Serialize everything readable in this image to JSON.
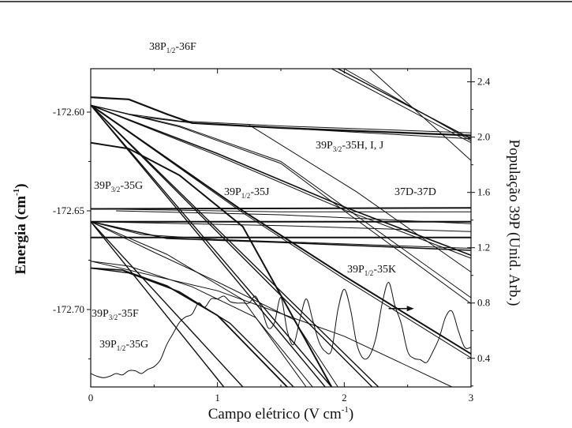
{
  "chart_data": {
    "type": "line",
    "xlabel": "Campo elétrico (V cm-1)",
    "xlabel_main": "Campo elétrico (V cm",
    "xlabel_sup": "-1",
    "xlabel_end": ")",
    "ylabel_main": "Energia  (cm",
    "ylabel_sup": "-1",
    "ylabel_end": ")",
    "y2label": "População 39P (Unid. Arb.)",
    "xlim": [
      0,
      3
    ],
    "ylim": [
      -172.7392,
      -172.578
    ],
    "y2lim": [
      0.193,
      2.495
    ],
    "xticks": [
      {
        "v": 0,
        "t": "0"
      },
      {
        "v": 1,
        "t": "1"
      },
      {
        "v": 2,
        "t": "2"
      },
      {
        "v": 3,
        "t": "3"
      }
    ],
    "yticks": [
      {
        "v": -172.6,
        "t": "-172.60"
      },
      {
        "v": -172.65,
        "t": "-172.65"
      },
      {
        "v": -172.7,
        "t": "-172.70"
      }
    ],
    "y2ticks": [
      {
        "v": 2.4,
        "t": "2.4"
      },
      {
        "v": 2.0,
        "t": "2.0"
      },
      {
        "v": 1.6,
        "t": "1.6"
      },
      {
        "v": 1.2,
        "t": "1.2"
      },
      {
        "v": 0.8,
        "t": "0.8"
      },
      {
        "v": 0.4,
        "t": "0.4"
      }
    ],
    "annotations": [
      {
        "main": "38P",
        "sub": "1/2",
        "rest": "-36F"
      },
      {
        "main": "39P",
        "sub": "3/2",
        "rest": "-35H, I, J"
      },
      {
        "main": "39P",
        "sub": "3/2",
        "rest": "-35G"
      },
      {
        "main": "39P",
        "sub": "1/2",
        "rest": "-35J"
      },
      {
        "main": "37D-37D",
        "sub": "",
        "rest": ""
      },
      {
        "main": "39P",
        "sub": "1/2",
        "rest": "-35K"
      },
      {
        "main": "39P",
        "sub": "3/2",
        "rest": "-35F"
      },
      {
        "main": "39P",
        "sub": "1/2",
        "rest": "-35G"
      }
    ],
    "energy_levels": [
      {
        "w": 2.2,
        "pts": [
          [
            0,
            -172.5925
          ],
          [
            0.3,
            -172.5935
          ],
          [
            0.6,
            -172.601
          ],
          [
            0.8,
            -172.6055
          ],
          [
            1.5,
            -172.608
          ],
          [
            3,
            -172.6118
          ]
        ]
      },
      {
        "w": 1,
        "pts": [
          [
            0,
            -172.5965
          ],
          [
            0.3,
            -172.601
          ],
          [
            0.7,
            -172.6045
          ],
          [
            1.5,
            -172.607
          ],
          [
            3,
            -172.6105
          ]
        ]
      },
      {
        "w": 1,
        "pts": [
          [
            0,
            -172.5965
          ],
          [
            0.4,
            -172.6025
          ],
          [
            0.8,
            -172.6055
          ],
          [
            3,
            -172.6135
          ]
        ]
      },
      {
        "w": 2,
        "pts": [
          [
            0,
            -172.5965
          ],
          [
            1.2,
            -172.65
          ],
          [
            2,
            -172.683
          ],
          [
            3,
            -172.7225
          ]
        ]
      },
      {
        "w": 1,
        "pts": [
          [
            0,
            -172.5965
          ],
          [
            1.2,
            -172.651
          ],
          [
            2,
            -172.6845
          ],
          [
            3,
            -172.7245
          ]
        ]
      },
      {
        "w": 1.6,
        "pts": [
          [
            0,
            -172.5965
          ],
          [
            1,
            -172.621
          ],
          [
            2,
            -172.648
          ],
          [
            3,
            -172.6725
          ]
        ]
      },
      {
        "w": 1,
        "pts": [
          [
            0,
            -172.5965
          ],
          [
            1,
            -172.622
          ],
          [
            2,
            -172.6495
          ],
          [
            3,
            -172.674
          ]
        ]
      },
      {
        "w": 1,
        "pts": [
          [
            0,
            -172.5965
          ],
          [
            0.7,
            -172.607
          ],
          [
            1.5,
            -172.625
          ],
          [
            2,
            -172.648
          ],
          [
            3,
            -172.694
          ]
        ]
      },
      {
        "w": 1,
        "pts": [
          [
            0,
            -172.5965
          ],
          [
            0.7,
            -172.6075
          ],
          [
            1.5,
            -172.626
          ],
          [
            2,
            -172.65
          ],
          [
            3,
            -172.697
          ]
        ]
      },
      {
        "w": 2,
        "pts": [
          [
            0,
            -172.6155
          ],
          [
            0.3,
            -172.6185
          ],
          [
            0.7,
            -172.632
          ],
          [
            1.2,
            -172.658
          ],
          [
            1.9,
            -172.7392
          ]
        ]
      },
      {
        "w": 1.4,
        "pts": [
          [
            0,
            -172.5965
          ],
          [
            1.85,
            -172.7392
          ]
        ]
      },
      {
        "w": 1.4,
        "pts": [
          [
            0,
            -172.5965
          ],
          [
            1.9,
            -172.7392
          ]
        ]
      },
      {
        "w": 1.4,
        "pts": [
          [
            0,
            -172.5965
          ],
          [
            2.22,
            -172.7392
          ]
        ]
      },
      {
        "w": 1.4,
        "pts": [
          [
            0,
            -172.5965
          ],
          [
            2.27,
            -172.7392
          ]
        ]
      },
      {
        "w": 2,
        "pts": [
          [
            0,
            -172.649
          ],
          [
            3,
            -172.6485
          ]
        ]
      },
      {
        "w": 1,
        "pts": [
          [
            0,
            -172.649
          ],
          [
            1.5,
            -172.6505
          ],
          [
            3,
            -172.6505
          ]
        ]
      },
      {
        "w": 1,
        "pts": [
          [
            0.2,
            -172.65
          ],
          [
            1.5,
            -172.652
          ],
          [
            3,
            -172.6565
          ]
        ]
      },
      {
        "w": 2,
        "pts": [
          [
            0,
            -172.6555
          ],
          [
            3,
            -172.6555
          ]
        ]
      },
      {
        "w": 1,
        "pts": [
          [
            0,
            -172.6555
          ],
          [
            1.5,
            -172.6575
          ],
          [
            3,
            -172.6605
          ]
        ]
      },
      {
        "w": 2,
        "pts": [
          [
            0,
            -172.6635
          ],
          [
            3,
            -172.6635
          ]
        ]
      },
      {
        "w": 1,
        "pts": [
          [
            0,
            -172.6555
          ],
          [
            0.4,
            -172.662
          ],
          [
            1,
            -172.6645
          ],
          [
            3,
            -172.669
          ]
        ]
      },
      {
        "w": 1.6,
        "pts": [
          [
            0,
            -172.6555
          ],
          [
            0.6,
            -172.664
          ],
          [
            1.5,
            -172.666
          ],
          [
            3,
            -172.67
          ]
        ]
      },
      {
        "w": 1.4,
        "pts": [
          [
            0,
            -172.6555
          ],
          [
            1.05,
            -172.7392
          ]
        ]
      },
      {
        "w": 1.4,
        "pts": [
          [
            0,
            -172.6555
          ],
          [
            1.2,
            -172.7392
          ]
        ]
      },
      {
        "w": 1,
        "pts": [
          [
            0,
            -172.6555
          ],
          [
            0.5,
            -172.671
          ],
          [
            1,
            -172.686
          ],
          [
            1.6,
            -172.705
          ],
          [
            1.95,
            -172.7392
          ]
        ]
      },
      {
        "w": 1,
        "pts": [
          [
            0,
            -172.6555
          ],
          [
            0.6,
            -172.672
          ],
          [
            1.2,
            -172.695
          ],
          [
            1.7,
            -172.7392
          ]
        ]
      },
      {
        "w": 1.8,
        "pts": [
          [
            0,
            -172.679
          ],
          [
            0.25,
            -172.68
          ],
          [
            0.6,
            -172.688
          ],
          [
            1.0,
            -172.703
          ],
          [
            1.55,
            -172.7392
          ]
        ]
      },
      {
        "w": 1.4,
        "pts": [
          [
            0,
            -172.679
          ],
          [
            0.3,
            -172.6815
          ],
          [
            0.7,
            -172.691
          ],
          [
            1.1,
            -172.707
          ],
          [
            1.6,
            -172.7392
          ]
        ]
      },
      {
        "w": 1,
        "pts": [
          [
            0,
            -172.6755
          ],
          [
            0.3,
            -172.678
          ],
          [
            0.8,
            -172.6885
          ],
          [
            1.3,
            -172.704
          ],
          [
            1.75,
            -172.7392
          ]
        ]
      },
      {
        "w": 1,
        "pts": [
          [
            0,
            -172.6755
          ],
          [
            1,
            -172.6905
          ],
          [
            2,
            -172.7135
          ],
          [
            2.85,
            -172.7392
          ]
        ]
      },
      {
        "w": 1,
        "pts": [
          [
            1.9,
            -172.578
          ],
          [
            3,
            -172.6155
          ]
        ]
      },
      {
        "w": 1.4,
        "pts": [
          [
            1.95,
            -172.578
          ],
          [
            3,
            -172.6135
          ]
        ]
      },
      {
        "w": 1,
        "pts": [
          [
            2.0,
            -172.578
          ],
          [
            3,
            -172.6145
          ]
        ]
      },
      {
        "w": 1,
        "pts": [
          [
            2.2,
            -172.578
          ],
          [
            3,
            -172.6245
          ]
        ]
      },
      {
        "w": 1,
        "pts": [
          [
            1.25,
            -172.6065
          ],
          [
            2.1,
            -172.6405
          ],
          [
            3,
            -172.681
          ]
        ]
      }
    ],
    "population_series": {
      "name": "População 39P",
      "x": [
        0,
        0.05,
        0.1,
        0.15,
        0.2,
        0.25,
        0.3,
        0.35,
        0.4,
        0.45,
        0.5,
        0.55,
        0.6,
        0.65,
        0.7,
        0.75,
        0.8,
        0.85,
        0.9,
        0.95,
        1.0,
        1.05,
        1.1,
        1.15,
        1.2,
        1.25,
        1.3,
        1.35,
        1.4,
        1.45,
        1.5,
        1.55,
        1.6,
        1.65,
        1.7,
        1.75,
        1.8,
        1.85,
        1.9,
        1.95,
        2.0,
        2.05,
        2.1,
        2.15,
        2.2,
        2.25,
        2.3,
        2.35,
        2.4,
        2.45,
        2.5,
        2.55,
        2.6,
        2.65,
        2.7,
        2.75,
        2.8,
        2.85,
        2.9,
        2.95,
        3.0
      ],
      "y": [
        0.29,
        0.27,
        0.26,
        0.27,
        0.29,
        0.28,
        0.31,
        0.31,
        0.29,
        0.32,
        0.34,
        0.39,
        0.5,
        0.58,
        0.66,
        0.7,
        0.72,
        0.8,
        0.77,
        0.83,
        0.83,
        0.85,
        0.81,
        0.8,
        0.8,
        0.8,
        0.85,
        0.75,
        0.62,
        0.66,
        0.84,
        0.6,
        0.5,
        0.68,
        0.83,
        0.68,
        0.52,
        0.45,
        0.46,
        0.75,
        0.9,
        0.75,
        0.5,
        0.4,
        0.42,
        0.55,
        0.8,
        0.95,
        0.78,
        0.65,
        0.45,
        0.4,
        0.39,
        0.37,
        0.45,
        0.55,
        0.7,
        0.74,
        0.6,
        0.48,
        0.48
      ]
    },
    "arrow": {
      "from": [
        2.35,
        0.76
      ],
      "to": [
        2.55,
        0.76
      ],
      "meaning": "right axis"
    }
  }
}
